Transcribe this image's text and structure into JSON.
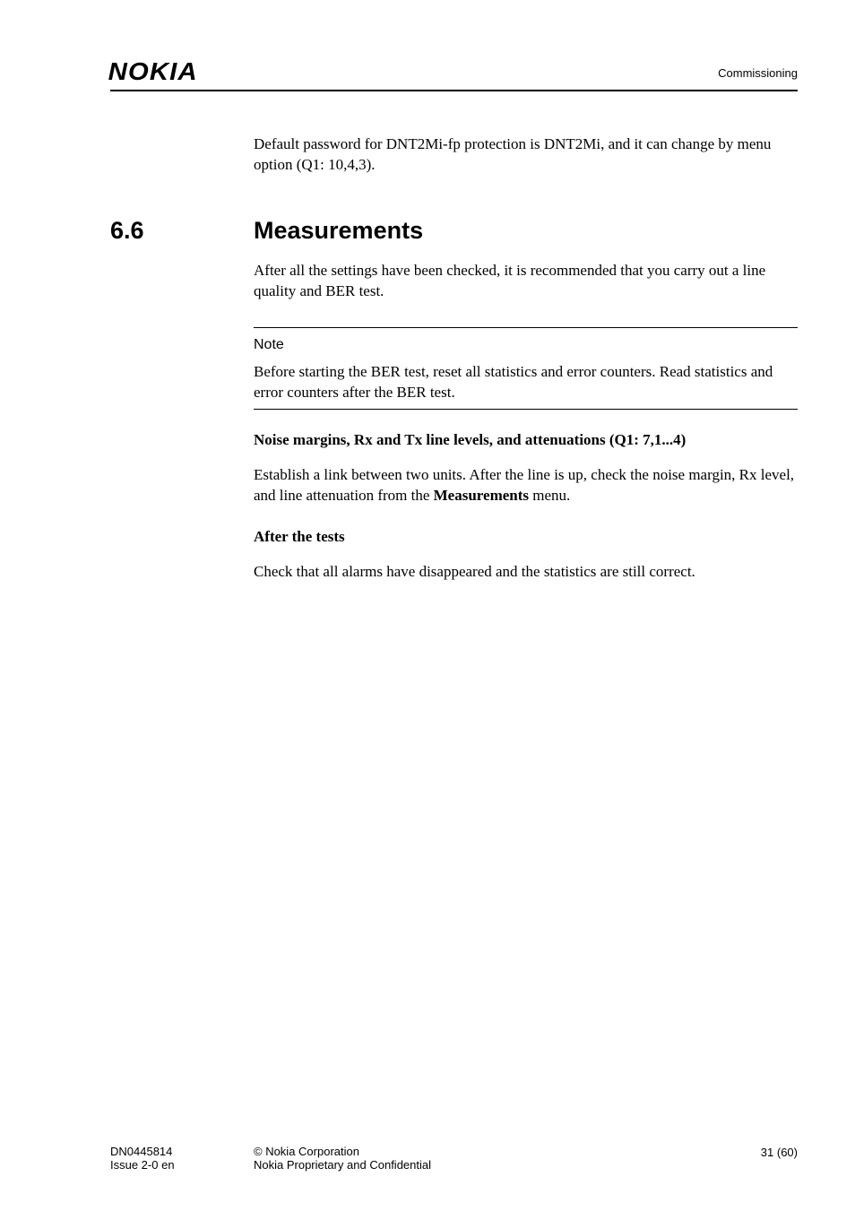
{
  "header": {
    "logo_text": "NOKIA",
    "right_label": "Commissioning"
  },
  "intro_para": "Default password for DNT2Mi-fp protection is DNT2Mi, and it can change by menu option (Q1: 10,4,3).",
  "section": {
    "number": "6.6",
    "title": "Measurements",
    "intro": "After all the settings have been checked, it is recommended that you carry out a line quality and BER test."
  },
  "note": {
    "label": "Note",
    "body": "Before starting the BER test, reset all statistics and error counters. Read statistics and error counters after the BER test."
  },
  "sub1": {
    "heading": "Noise margins, Rx and Tx line levels, and attenuations (Q1: 7,1...4)",
    "body_pre": "Establish a link between two units. After the line is up, check the noise margin, Rx level, and line attenuation from the ",
    "body_bold": "Measurements",
    "body_post": " menu."
  },
  "sub2": {
    "heading": "After the tests",
    "body": "Check that all alarms have disappeared and the statistics are still correct."
  },
  "footer": {
    "doc_id": "DN0445814",
    "issue": "Issue 2-0 en",
    "copyright": "© Nokia Corporation",
    "confidential": "Nokia Proprietary and Confidential",
    "page": "31 (60)"
  }
}
